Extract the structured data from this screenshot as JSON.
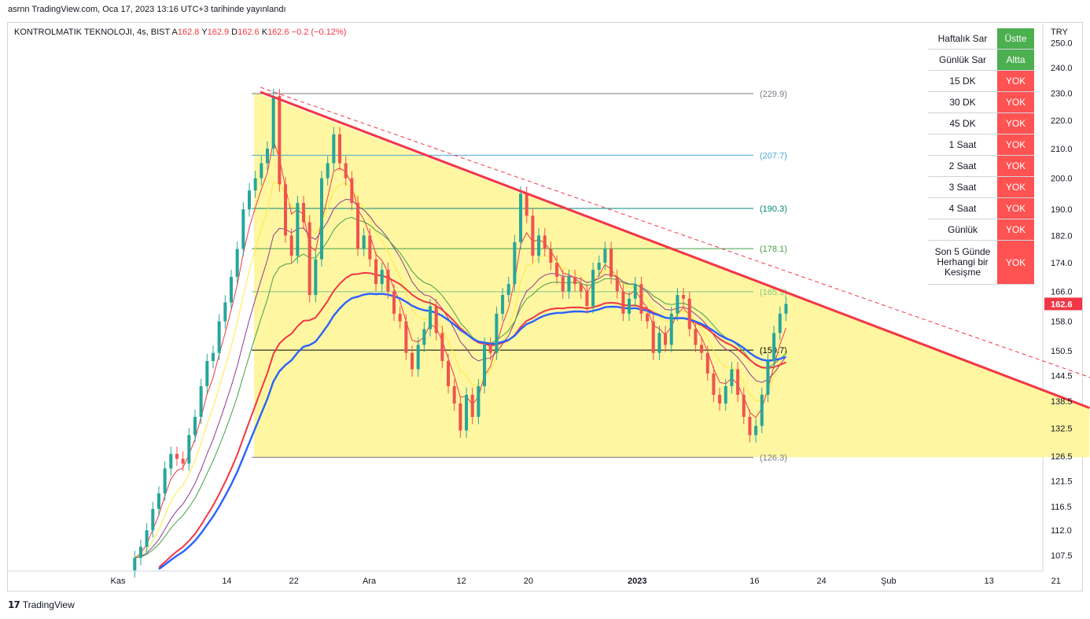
{
  "header": {
    "publish_line": "asrnn TradingView.com, Oca 17, 2023 13:16 UTC+3 tarihinde yayınlandı"
  },
  "legend": {
    "symbol": "KONTROLMATIK TEKNOLOJI, 4s, BIST",
    "o_label": "A",
    "o_value": "162.8",
    "h_label": "Y",
    "h_value": "162.9",
    "l_label": "D",
    "l_value": "162.6",
    "c_label": "K",
    "c_value": "162.6",
    "change": "−0.2 (−0.12%)"
  },
  "currency": "TRY",
  "last_price_label": "162.6",
  "colors": {
    "up": "#26a69a",
    "down": "#ef5350",
    "triangle_fill": "#fff59d",
    "trendline": "#f23645",
    "yok": "#ff5252",
    "ok": "#4caf50"
  },
  "signal_table": [
    {
      "label": "Haftalık Sar",
      "value": "Üstte",
      "status": "ok"
    },
    {
      "label": "Günlük Sar",
      "value": "Altta",
      "status": "ok"
    },
    {
      "label": "15 DK",
      "value": "YOK",
      "status": "yok"
    },
    {
      "label": "30 DK",
      "value": "YOK",
      "status": "yok"
    },
    {
      "label": "45 DK",
      "value": "YOK",
      "status": "yok"
    },
    {
      "label": "1 Saat",
      "value": "YOK",
      "status": "yok"
    },
    {
      "label": "2 Saat",
      "value": "YOK",
      "status": "yok"
    },
    {
      "label": "3 Saat",
      "value": "YOK",
      "status": "yok"
    },
    {
      "label": "4 Saat",
      "value": "YOK",
      "status": "yok"
    },
    {
      "label": "Günlük",
      "value": "YOK",
      "status": "yok"
    },
    {
      "label": "Son 5 Günde Herhangi bir Kesişme",
      "value": "YOK",
      "status": "yok"
    }
  ],
  "brand": "TradingView",
  "chart_data": {
    "type": "candlestick",
    "y_scale": "log",
    "ylim": [
      105.0,
      258.0
    ],
    "y_ticks": [
      "107.5",
      "112.0",
      "116.5",
      "121.5",
      "126.5",
      "132.5",
      "138.5",
      "144.5",
      "150.5",
      "158.0",
      "166.0",
      "174.0",
      "182.0",
      "190.0",
      "200.0",
      "210.0",
      "220.0",
      "230.0",
      "240.0",
      "250.0"
    ],
    "x_ticks": [
      {
        "label": "Kas",
        "day": 0
      },
      {
        "label": "14",
        "day": 13
      },
      {
        "label": "22",
        "day": 21
      },
      {
        "label": "Ara",
        "day": 30
      },
      {
        "label": "12",
        "day": 41
      },
      {
        "label": "20",
        "day": 49
      },
      {
        "label": "2023",
        "day": 62
      },
      {
        "label": "16",
        "day": 76
      },
      {
        "label": "24",
        "day": 84
      },
      {
        "label": "Şub",
        "day": 92
      },
      {
        "label": "13",
        "day": 104
      },
      {
        "label": "21",
        "day": 112
      }
    ],
    "horizontal_levels": [
      {
        "value": 229.9,
        "label": "(229.9)",
        "color": "#787b86"
      },
      {
        "value": 207.7,
        "label": "(207.7)",
        "color": "#4fa7d8"
      },
      {
        "value": 190.3,
        "label": "(190.3)",
        "color": "#00897b"
      },
      {
        "value": 178.1,
        "label": "(178.1)",
        "color": "#43a047"
      },
      {
        "value": 165.9,
        "label": "(165.9)",
        "color": "#81c784"
      },
      {
        "value": 150.7,
        "label": "(150.7)",
        "color": "#000000"
      },
      {
        "value": 126.3,
        "label": "(126.3)",
        "color": "#787b86"
      }
    ],
    "triangle": {
      "start_day": 17,
      "start_value": 230.5,
      "end_day": 116,
      "end_value": 137.0,
      "base_value": 126.3
    },
    "closes": [
      107,
      109,
      112,
      116,
      119,
      124,
      127,
      126,
      125,
      131,
      135,
      142,
      148,
      150,
      158,
      163,
      170,
      178,
      190,
      196,
      200,
      205,
      210,
      229,
      198,
      182,
      176,
      192,
      186,
      165,
      175,
      200,
      205,
      215,
      205,
      200,
      192,
      178,
      182,
      175,
      168,
      172,
      166,
      160,
      158,
      150,
      146,
      152,
      156,
      162,
      155,
      148,
      142,
      138,
      132,
      140,
      135,
      142,
      152,
      150,
      160,
      165,
      168,
      180,
      195,
      188,
      176,
      182,
      178,
      174,
      170,
      166,
      170,
      168,
      166,
      162,
      172,
      174,
      178,
      170,
      166,
      160,
      164,
      168,
      160,
      158,
      150,
      155,
      152,
      160,
      165,
      164,
      156,
      152,
      150,
      145,
      140,
      138,
      142,
      146,
      140,
      135,
      131,
      133,
      140,
      148,
      155,
      160,
      162.6
    ]
  }
}
